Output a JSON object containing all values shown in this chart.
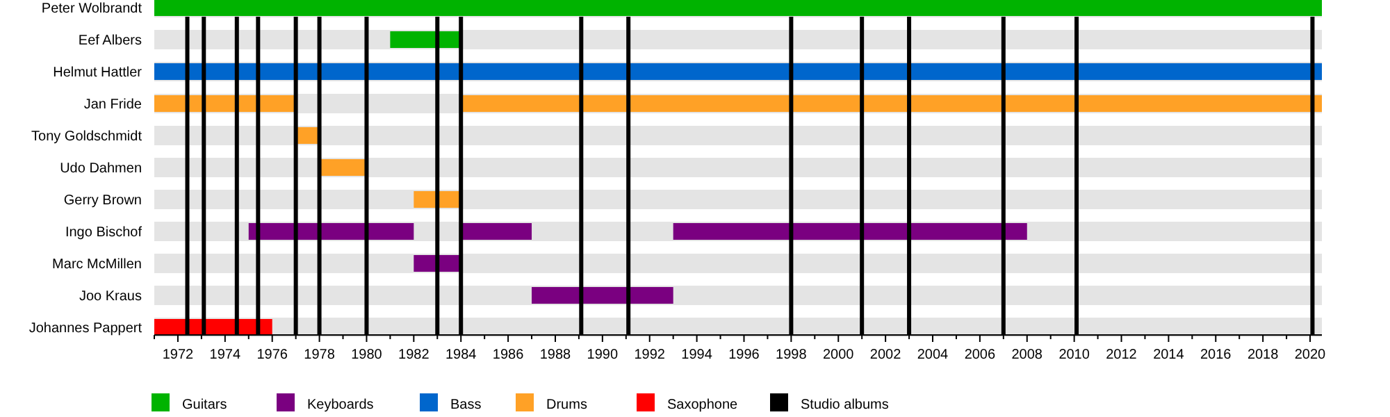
{
  "chart_data": {
    "type": "bar",
    "orientation": "horizontal",
    "categories": [
      "Peter Wolbrandt",
      "Eef Albers",
      "Helmut Hattler",
      "Jan Fride",
      "Tony Goldschmidt",
      "Udo Dahmen",
      "Gerry Brown",
      "Ingo Bischof",
      "Marc McMillen",
      "Joo Kraus",
      "Johannes Pappert"
    ],
    "series": [
      {
        "name": "Guitars",
        "color": "#00b300",
        "base": [
          1971,
          1981,
          null,
          null,
          null,
          null,
          null,
          null,
          null,
          null,
          null
        ],
        "values": [
          49.5,
          3,
          null,
          null,
          null,
          null,
          null,
          null,
          null,
          null,
          null
        ]
      },
      {
        "name": "Keyboards",
        "color": "#7a0080",
        "base": [
          null,
          null,
          null,
          null,
          null,
          null,
          null,
          1975,
          1982,
          1987,
          null
        ],
        "values": [
          null,
          null,
          null,
          null,
          null,
          null,
          null,
          7,
          2,
          6,
          null
        ]
      },
      {
        "color": "#7a0080",
        "base": [
          null,
          null,
          null,
          null,
          null,
          null,
          null,
          1984,
          null,
          null,
          null
        ],
        "values": [
          null,
          null,
          null,
          null,
          null,
          null,
          null,
          3,
          null,
          null,
          null
        ]
      },
      {
        "color": "#7a0080",
        "base": [
          null,
          null,
          null,
          null,
          null,
          null,
          null,
          1993,
          null,
          null,
          null
        ],
        "values": [
          null,
          null,
          null,
          null,
          null,
          null,
          null,
          15,
          null,
          null,
          null
        ]
      },
      {
        "name": "Bass",
        "color": "#0066cc",
        "base": [
          null,
          null,
          1971,
          null,
          null,
          null,
          null,
          null,
          null,
          null,
          null
        ],
        "values": [
          null,
          null,
          49.5,
          null,
          null,
          null,
          null,
          null,
          null,
          null,
          null
        ]
      },
      {
        "name": "Drums",
        "color": "#ffa126",
        "base": [
          null,
          null,
          null,
          1971,
          1977,
          1978,
          1982,
          null,
          null,
          null,
          null
        ],
        "values": [
          null,
          null,
          null,
          6,
          1,
          2,
          2,
          null,
          null,
          null,
          null
        ]
      },
      {
        "color": "#ffa126",
        "base": [
          null,
          null,
          null,
          1984,
          null,
          null,
          null,
          null,
          null,
          null,
          null
        ],
        "values": [
          null,
          null,
          null,
          36.5,
          null,
          null,
          null,
          null,
          null,
          null,
          null
        ]
      },
      {
        "name": "Saxophone",
        "color": "#ff0000",
        "base": [
          null,
          null,
          null,
          null,
          null,
          null,
          null,
          null,
          null,
          null,
          1971
        ],
        "values": [
          null,
          null,
          null,
          null,
          null,
          null,
          null,
          null,
          null,
          null,
          5
        ]
      }
    ],
    "xlim": [
      1971,
      2020.5
    ],
    "xticks": [
      {
        "value": 1971,
        "label": null
      },
      1972,
      {
        "value": 1973,
        "label": null
      },
      1974,
      {
        "value": 1975,
        "label": null
      },
      1976,
      {
        "value": 1977,
        "label": null
      },
      1978,
      {
        "value": 1979,
        "label": null
      },
      1980,
      {
        "value": 1981,
        "label": null
      },
      1982,
      {
        "value": 1983,
        "label": null
      },
      1984,
      {
        "value": 1985,
        "label": null
      },
      1986,
      {
        "value": 1987,
        "label": null
      },
      1988,
      {
        "value": 1989,
        "label": null
      },
      1990,
      {
        "value": 1991,
        "label": null
      },
      1992,
      {
        "value": 1993,
        "label": null
      },
      1994,
      {
        "value": 1995,
        "label": null
      },
      1996,
      {
        "value": 1997,
        "label": null
      },
      1998,
      {
        "value": 1999,
        "label": null
      },
      2000,
      {
        "value": 2001,
        "label": null
      },
      2002,
      {
        "value": 2003,
        "label": null
      },
      2004,
      {
        "value": 2005,
        "label": null
      },
      2006,
      {
        "value": 2007,
        "label": null
      },
      2008,
      {
        "value": 2009,
        "label": null
      },
      2010,
      {
        "value": 2011,
        "label": null
      },
      2012,
      {
        "value": 2013,
        "label": null
      },
      2014,
      {
        "value": 2015,
        "label": null
      },
      2016,
      {
        "value": 2017,
        "label": null
      },
      2018,
      {
        "value": 2019,
        "label": null
      },
      2020
    ],
    "ref_lines": [
      {
        "axis": "x",
        "value": 1972.4,
        "color": "#000000",
        "label": "Studio albums"
      },
      {
        "axis": "x",
        "value": 1973.1,
        "color": "#000000"
      },
      {
        "axis": "x",
        "value": 1974.5,
        "color": "#000000"
      },
      {
        "axis": "x",
        "value": 1975.4,
        "color": "#000000"
      },
      {
        "axis": "x",
        "value": 1977,
        "color": "#000000"
      },
      {
        "axis": "x",
        "value": 1978,
        "color": "#000000"
      },
      {
        "axis": "x",
        "value": 1980,
        "color": "#000000"
      },
      {
        "axis": "x",
        "value": 1983,
        "color": "#000000"
      },
      {
        "axis": "x",
        "value": 1984,
        "color": "#000000"
      },
      {
        "axis": "x",
        "value": 1989.1,
        "color": "#000000"
      },
      {
        "axis": "x",
        "value": 1991.1,
        "color": "#000000"
      },
      {
        "axis": "x",
        "value": 1998,
        "color": "#000000"
      },
      {
        "axis": "x",
        "value": 2001,
        "color": "#000000"
      },
      {
        "axis": "x",
        "value": 2003,
        "color": "#000000"
      },
      {
        "axis": "x",
        "value": 2007,
        "color": "#000000"
      },
      {
        "axis": "x",
        "value": 2010.1,
        "color": "#000000"
      },
      {
        "axis": "x",
        "value": 2020.1,
        "color": "#000000"
      }
    ],
    "legend": "bottom"
  }
}
